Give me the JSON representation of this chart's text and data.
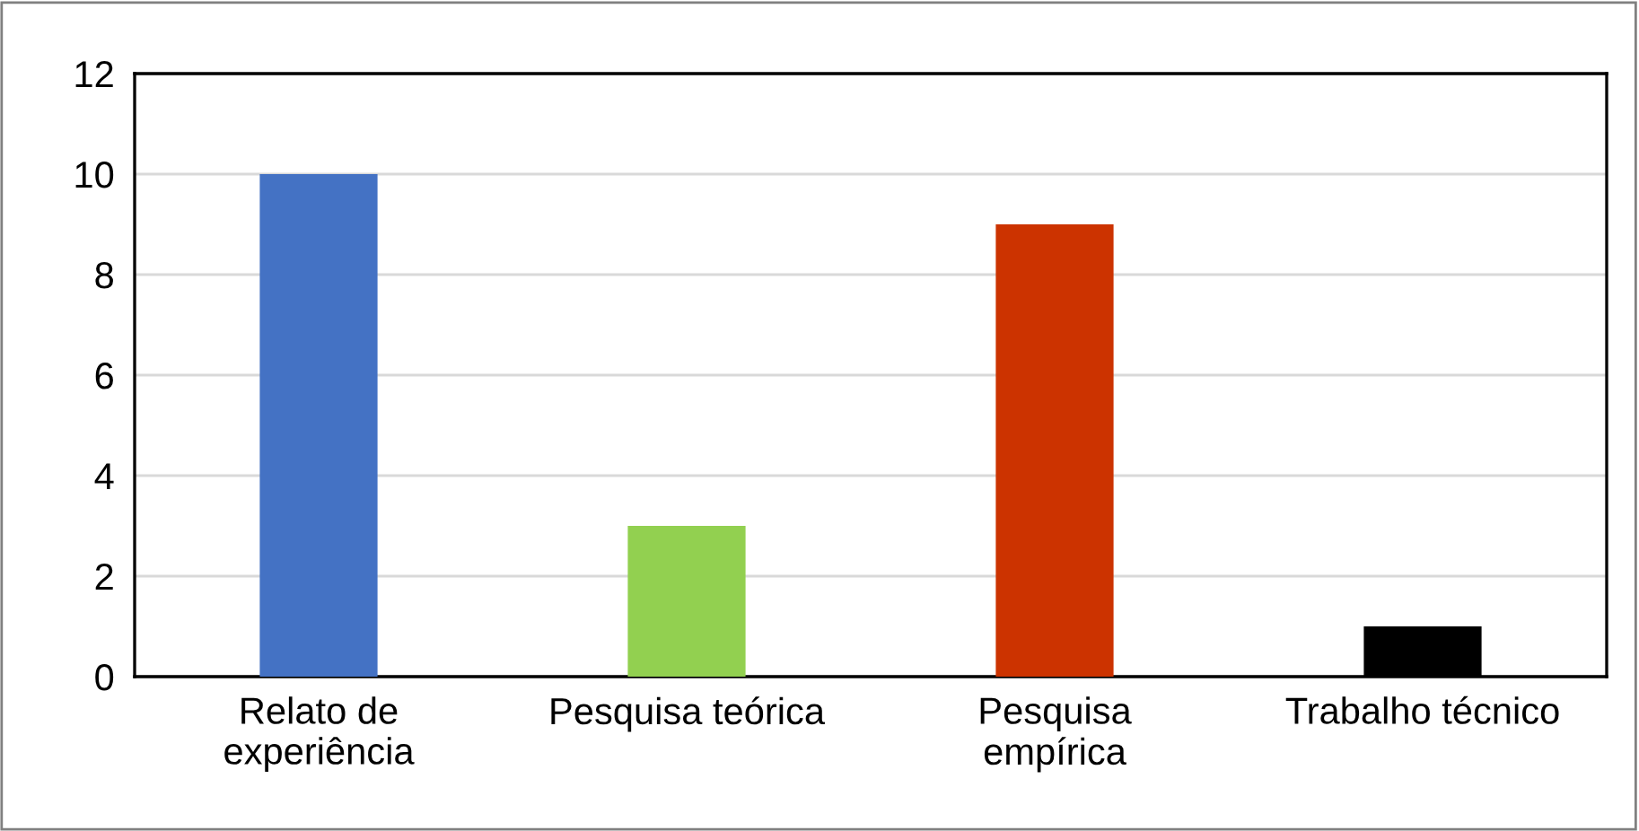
{
  "chart_data": {
    "type": "bar",
    "categories": [
      "Relato de\nexperiência",
      "Pesquisa teórica",
      "Pesquisa\nempírica",
      "Trabalho técnico"
    ],
    "values": [
      10,
      3,
      9,
      1
    ],
    "colors": [
      "#4472c4",
      "#92d050",
      "#cc3300",
      "#000000"
    ],
    "ylim": [
      0,
      12
    ],
    "yticks": [
      0,
      2,
      4,
      6,
      8,
      10,
      12
    ],
    "grid": "y",
    "legend": false
  }
}
